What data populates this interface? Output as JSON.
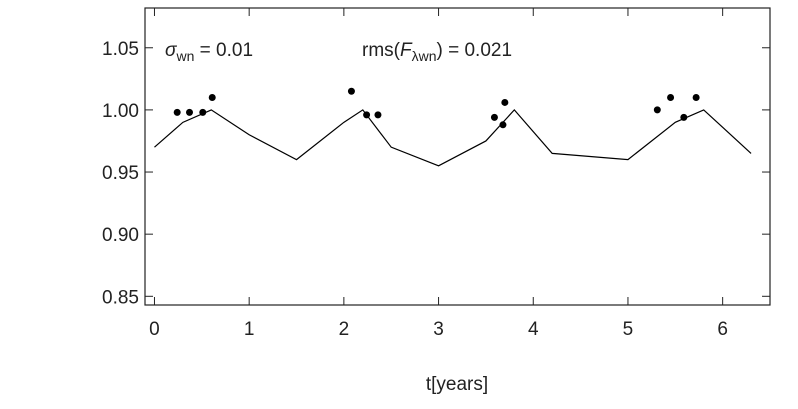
{
  "chart_data": {
    "type": "scatter",
    "xlabel": "t[years]",
    "annotations": [
      {
        "parts": [
          "σ",
          "wn",
          " = 0.01"
        ]
      },
      {
        "parts": [
          "rms(",
          "F",
          "λwn",
          ") = 0.021"
        ]
      }
    ],
    "series": [
      {
        "type": "scatter",
        "color": "#000000",
        "x": [
          0.24,
          0.37,
          0.51,
          0.61,
          2.08,
          2.24,
          2.36,
          3.59,
          3.68,
          3.7,
          5.31,
          5.45,
          5.59,
          5.72
        ],
        "values": [
          0.998,
          0.998,
          0.998,
          1.01,
          1.015,
          0.996,
          0.996,
          0.994,
          0.988,
          1.006,
          1.0,
          1.01,
          0.994,
          1.01
        ]
      },
      {
        "type": "line",
        "color": "#000000",
        "x": [
          0.0,
          0.3,
          0.6,
          1.0,
          1.5,
          2.0,
          2.2,
          2.5,
          3.0,
          3.5,
          3.8,
          4.2,
          5.0,
          5.5,
          5.8,
          6.3
        ],
        "values": [
          0.97,
          0.99,
          1.0,
          0.98,
          0.96,
          0.99,
          1.0,
          0.97,
          0.955,
          0.975,
          1.0,
          0.965,
          0.96,
          0.99,
          1.0,
          0.965
        ]
      }
    ],
    "xlim": [
      -0.1,
      6.5
    ],
    "ylim": [
      0.843,
      1.082
    ],
    "xticks": [
      0,
      1,
      2,
      3,
      4,
      5,
      6
    ],
    "yticks": [
      0.85,
      {
        "value": 0.9,
        "label": "0.90"
      },
      0.95,
      {
        "value": 1.0,
        "label": "1.00"
      },
      1.05
    ]
  }
}
